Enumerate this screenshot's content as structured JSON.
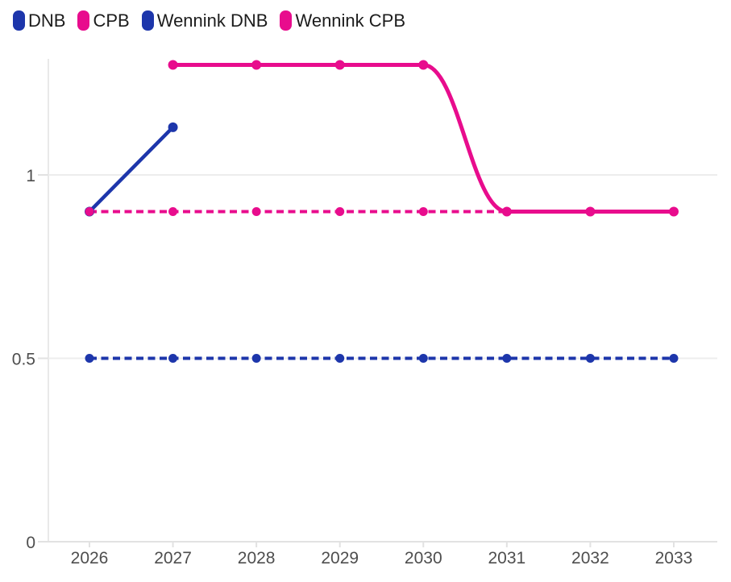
{
  "legend": {
    "items": [
      {
        "label": "DNB",
        "color": "#1d36ab"
      },
      {
        "label": "CPB",
        "color": "#e80c8d"
      },
      {
        "label": "Wennink DNB",
        "color": "#1d36ab"
      },
      {
        "label": "Wennink CPB",
        "color": "#e80c8d"
      }
    ]
  },
  "chart_data": {
    "type": "line",
    "title": "",
    "xlabel": "",
    "ylabel": "",
    "x_categories": [
      2026,
      2027,
      2028,
      2029,
      2030,
      2031,
      2032,
      2033
    ],
    "series": [
      {
        "name": "DNB",
        "color": "#1d36ab",
        "line_style": "solid",
        "smooth": false,
        "x": [
          2026,
          2027
        ],
        "values": [
          0.9,
          1.13
        ]
      },
      {
        "name": "CPB",
        "color": "#e80c8d",
        "line_style": "solid",
        "smooth": true,
        "x": [
          2027,
          2028,
          2029,
          2030,
          2031,
          2032,
          2033
        ],
        "values": [
          1.3,
          1.3,
          1.3,
          1.3,
          0.9,
          0.9,
          0.9
        ]
      },
      {
        "name": "Wennink DNB",
        "color": "#1d36ab",
        "line_style": "dashed",
        "smooth": false,
        "x": [
          2026,
          2027,
          2028,
          2029,
          2030,
          2031,
          2032,
          2033
        ],
        "values": [
          0.5,
          0.5,
          0.5,
          0.5,
          0.5,
          0.5,
          0.5,
          0.5
        ]
      },
      {
        "name": "Wennink CPB",
        "color": "#e80c8d",
        "line_style": "dashed",
        "smooth": false,
        "x": [
          2026,
          2027,
          2028,
          2029,
          2030,
          2031,
          2032,
          2033
        ],
        "values": [
          0.9,
          0.9,
          0.9,
          0.9,
          0.9,
          0.9,
          0.9,
          0.9
        ]
      }
    ],
    "xticks": [
      "2026",
      "2027",
      "2028",
      "2029",
      "2030",
      "2031",
      "2032",
      "2033"
    ],
    "yticks": [
      {
        "value": 0,
        "label": "0"
      },
      {
        "value": 0.5,
        "label": "0.5"
      },
      {
        "value": 1,
        "label": "1"
      }
    ],
    "ylim": [
      0,
      1.32
    ],
    "grid": true,
    "legend_position": "top-left"
  }
}
